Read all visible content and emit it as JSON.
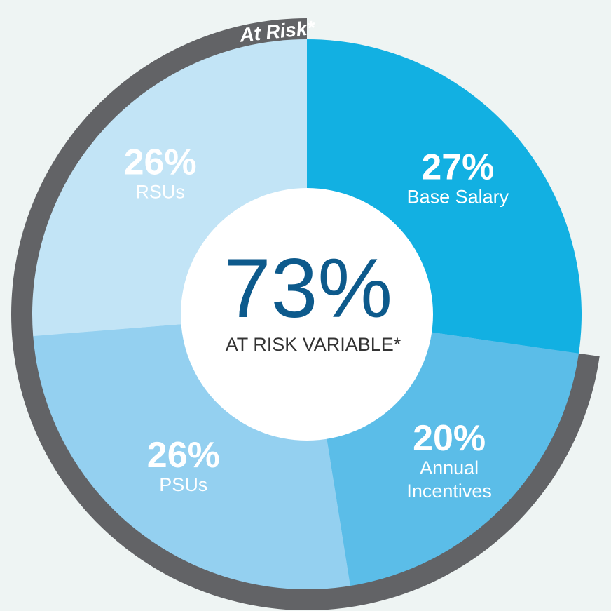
{
  "chart_data": {
    "type": "pie",
    "variant": "donut",
    "slices": [
      {
        "value": 27,
        "label": "27%",
        "name": "Base Salary",
        "name_lines": [
          "Base Salary"
        ],
        "color": "#12b0e2"
      },
      {
        "value": 20,
        "label": "20%",
        "name": "Annual Incentives",
        "name_lines": [
          "Annual",
          "Incentives"
        ],
        "color": "#5bbde8"
      },
      {
        "value": 26,
        "label": "26%",
        "name": "PSUs",
        "name_lines": [
          "PSUs"
        ],
        "color": "#94d0f0"
      },
      {
        "value": 26,
        "label": "26%",
        "name": "RSUs",
        "name_lines": [
          "RSUs"
        ],
        "color": "#c2e4f6"
      }
    ],
    "center": {
      "value_text": "73%",
      "label": "AT RISK VARIABLE*"
    },
    "arc_label": "At Risk*",
    "arc_color": "#626366",
    "center_value_color": "#0d5a8c",
    "background_color": "#eef4f3"
  }
}
